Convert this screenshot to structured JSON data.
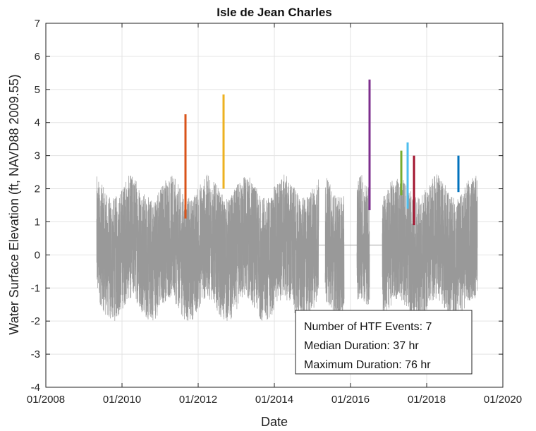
{
  "chart_data": {
    "type": "line",
    "title": "Isle de Jean Charles",
    "xlabel": "Date",
    "ylabel": "Water Surface Elevation (ft, NAVD88 2009.55)",
    "xlim": [
      "2008-01",
      "2020-01"
    ],
    "ylim": [
      -4,
      7
    ],
    "x_tick_labels": [
      "01/2008",
      "01/2010",
      "01/2012",
      "01/2014",
      "01/2016",
      "01/2018",
      "01/2020"
    ],
    "y_tick_labels": [
      "-4",
      "-3",
      "-2",
      "-1",
      "0",
      "1",
      "2",
      "3",
      "4",
      "5",
      "6",
      "7"
    ],
    "grid": true,
    "series": [
      {
        "color": "#999999",
        "segments": [
          [
            "2009-05",
            "2013-05"
          ],
          [
            "2013-05",
            "2015-03"
          ],
          [
            "2015-05",
            "2015-11"
          ],
          [
            "2016-03",
            "2016-07"
          ],
          [
            "2016-11",
            "2019-05"
          ]
        ],
        "approx_range": [
          -2,
          2.6
        ]
      }
    ],
    "htf_events": [
      {
        "date": "2011-09",
        "low": 1.1,
        "high": 4.25,
        "color": "#d95319"
      },
      {
        "date": "2012-09",
        "low": 2.0,
        "high": 4.85,
        "color": "#edb120"
      },
      {
        "date": "2016-07",
        "low": 1.35,
        "high": 5.3,
        "color": "#7e2f8e"
      },
      {
        "date": "2017-05",
        "low": 1.8,
        "high": 3.15,
        "color": "#77ac30"
      },
      {
        "date": "2017-07",
        "low": 1.4,
        "high": 3.4,
        "color": "#4dbeee"
      },
      {
        "date": "2017-09",
        "low": 0.9,
        "high": 3.0,
        "color": "#a2142f"
      },
      {
        "date": "2018-11",
        "low": 1.9,
        "high": 3.0,
        "color": "#0072bd"
      }
    ],
    "annotation_box": {
      "lines": [
        "Number of HTF Events: 7",
        "Median Duration: 37 hr",
        "Maximum Duration: 76 hr"
      ],
      "placement": "bottom-right"
    }
  }
}
